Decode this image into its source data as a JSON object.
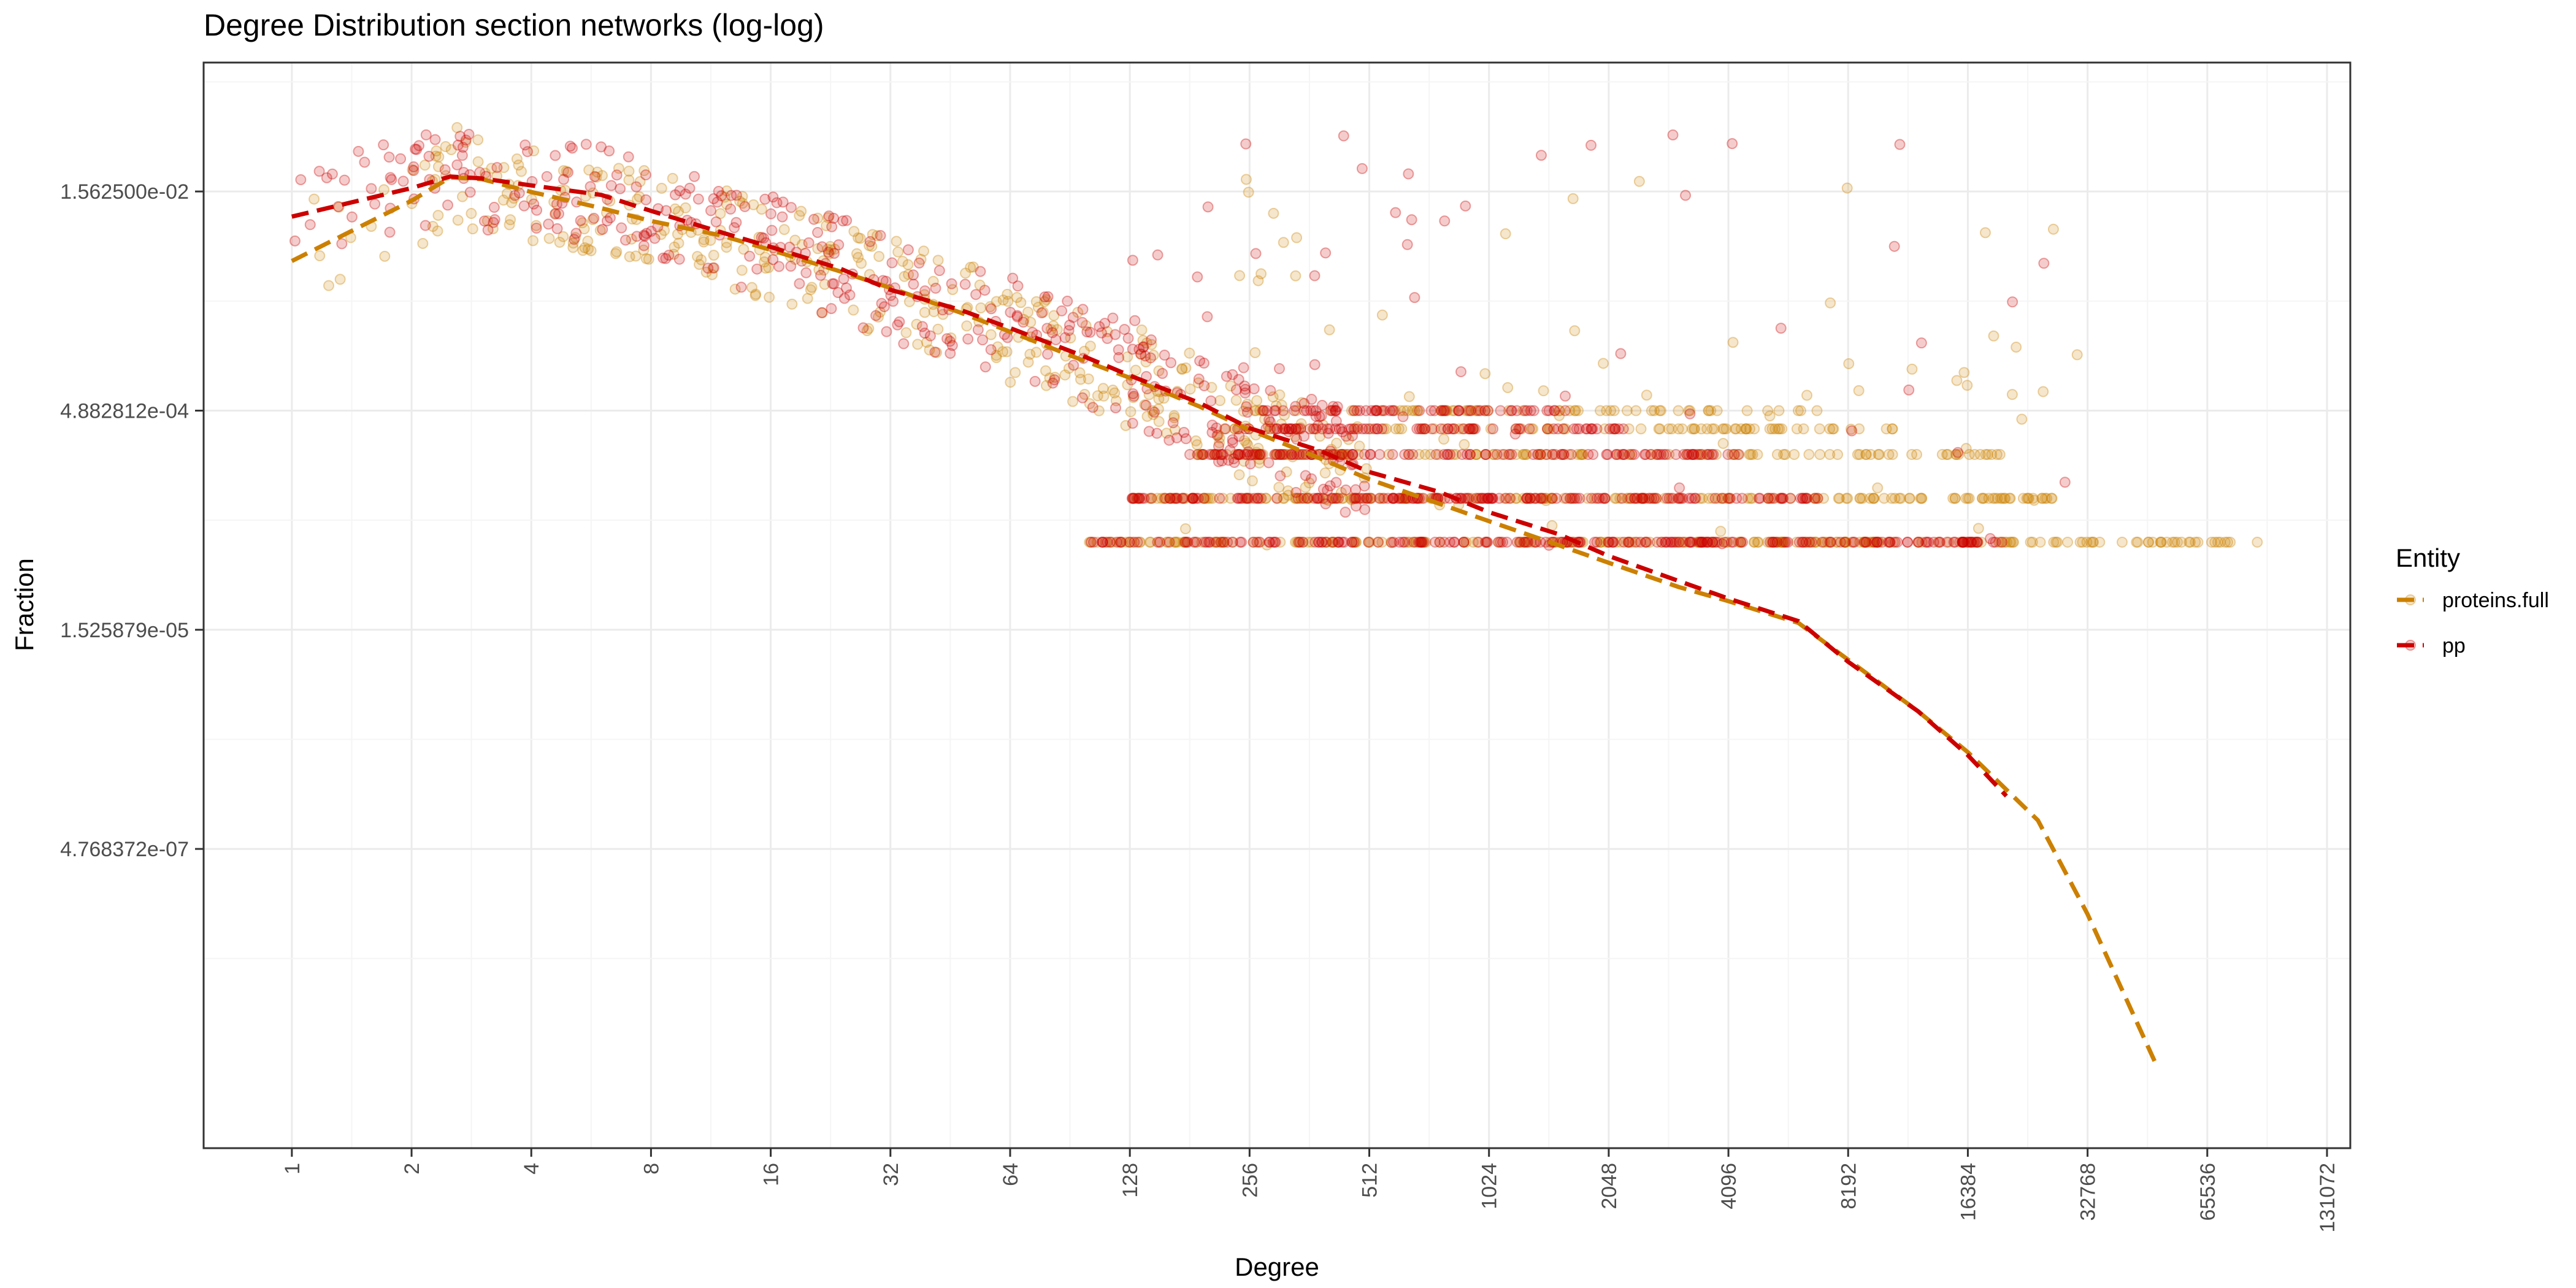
{
  "chart_data": {
    "type": "scatter",
    "title": "Degree Distribution section networks (log-log)",
    "xlabel": "Degree",
    "ylabel": "Fraction",
    "x_scale": "log2",
    "y_scale": "log",
    "xlim": [
      0.6,
      150000
    ],
    "ylim": [
      4.2e-09,
      0.12
    ],
    "x_ticks": [
      1,
      2,
      4,
      8,
      16,
      32,
      64,
      128,
      256,
      512,
      1024,
      2048,
      4096,
      8192,
      16384,
      32768,
      65536,
      131072
    ],
    "x_tick_labels": [
      "1",
      "2",
      "4",
      "8",
      "16",
      "32",
      "64",
      "128",
      "256",
      "512",
      "1024",
      "2048",
      "4096",
      "8192",
      "16384",
      "32768",
      "65536",
      "131072"
    ],
    "y_ticks": [
      0.015625,
      0.00048828125,
      1.52587890625e-05,
      4.76837158203125e-07
    ],
    "y_tick_labels": [
      "1.562500e-02",
      "4.882812e-04",
      "1.525879e-05",
      "4.768372e-07"
    ],
    "grid": true,
    "legend": {
      "title": "Entity",
      "position": "right"
    },
    "series": [
      {
        "name": "proteins.full",
        "color": "#cc8000",
        "trend": [
          [
            1,
            0.0052
          ],
          [
            2,
            0.0135
          ],
          [
            2.5,
            0.0195
          ],
          [
            3,
            0.019
          ],
          [
            4,
            0.0155
          ],
          [
            5,
            0.0135
          ],
          [
            6,
            0.012
          ],
          [
            8,
            0.0098
          ],
          [
            12,
            0.0078
          ],
          [
            16,
            0.0062
          ],
          [
            24,
            0.0044
          ],
          [
            32,
            0.0034
          ],
          [
            48,
            0.0023
          ],
          [
            64,
            0.0017
          ],
          [
            96,
            0.0011
          ],
          [
            128,
            0.00082
          ],
          [
            192,
            0.00052
          ],
          [
            256,
            0.00036
          ],
          [
            384,
            0.00023
          ],
          [
            512,
            0.000165
          ],
          [
            768,
            0.000112
          ],
          [
            1024,
            8.5e-05
          ],
          [
            1536,
            5.8e-05
          ],
          [
            2048,
            4.4e-05
          ],
          [
            3072,
            3e-05
          ],
          [
            4096,
            2.4e-05
          ],
          [
            6144,
            1.7e-05
          ],
          [
            8192,
            9.5e-06
          ],
          [
            12288,
            4.2e-06
          ],
          [
            16384,
            2.2e-06
          ],
          [
            24576,
            7.5e-07
          ],
          [
            32768,
            1.7e-07
          ],
          [
            49152,
            1.5e-08
          ]
        ],
        "points_y": [
          0.000244,
          0.000122,
          6.1e-05,
          0.000366,
          0.000488,
          0.00073,
          0.00098,
          0.0014,
          0.0021,
          0.0032,
          0.0045,
          0.0065,
          0.009,
          0.012,
          0.018,
          0.025
        ]
      },
      {
        "name": "pp",
        "color": "#cc0000",
        "trend": [
          [
            1,
            0.0105
          ],
          [
            2,
            0.0165
          ],
          [
            2.5,
            0.0198
          ],
          [
            3,
            0.0192
          ],
          [
            4,
            0.0172
          ],
          [
            6,
            0.0148
          ],
          [
            8,
            0.0115
          ],
          [
            12,
            0.0082
          ],
          [
            16,
            0.0065
          ],
          [
            24,
            0.0046
          ],
          [
            32,
            0.0033
          ],
          [
            48,
            0.0024
          ],
          [
            64,
            0.0018
          ],
          [
            96,
            0.00118
          ],
          [
            128,
            0.00085
          ],
          [
            192,
            0.00055
          ],
          [
            256,
            0.00037
          ],
          [
            384,
            0.00026
          ],
          [
            512,
            0.000185
          ],
          [
            768,
            0.000135
          ],
          [
            1024,
            9.8e-05
          ],
          [
            1536,
            6.9e-05
          ],
          [
            2048,
            4.9e-05
          ],
          [
            3072,
            3.3e-05
          ],
          [
            4096,
            2.5e-05
          ],
          [
            6144,
            1.75e-05
          ],
          [
            8192,
            9.2e-06
          ],
          [
            12288,
            4.2e-06
          ],
          [
            16384,
            2.1e-06
          ],
          [
            20480,
            1.1e-06
          ]
        ],
        "points_y": [
          0.000244,
          0.000122,
          6.1e-05,
          0.000366,
          0.000488,
          0.00073,
          0.00098,
          0.0014,
          0.0021,
          0.0032,
          0.0045,
          0.0065,
          0.009,
          0.012,
          0.018,
          0.03
        ]
      }
    ]
  }
}
